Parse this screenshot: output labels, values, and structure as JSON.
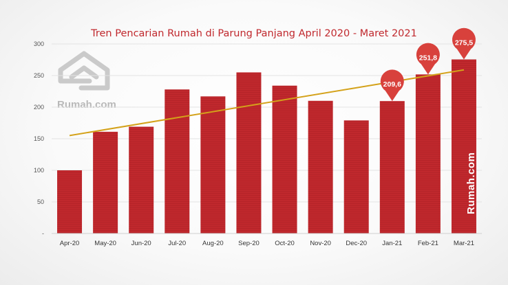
{
  "colors": {
    "bar": "#c0282d",
    "trend": "#d4a21a",
    "callout": "#d8413c",
    "grid": "#e3e3e3",
    "watermark": "#c4c4c4"
  },
  "watermark": {
    "logo_icon": "rumah-house-logo-icon",
    "text": "Rumah.com"
  },
  "brand_vertical": "Rumah.com",
  "chart_data": {
    "type": "bar",
    "title": "Tren Pencarian Rumah di Parung Panjang April 2020 - Maret 2021",
    "xlabel": "",
    "ylabel": "",
    "categories": [
      "Apr-20",
      "May-20",
      "Jun-20",
      "Jul-20",
      "Aug-20",
      "Sep-20",
      "Oct-20",
      "Nov-20",
      "Dec-20",
      "Jan-21",
      "Feb-21",
      "Mar-21"
    ],
    "values": [
      100,
      161,
      169,
      228,
      217,
      255,
      234,
      210,
      179,
      209.6,
      251.8,
      275.5
    ],
    "ylim": [
      0,
      300
    ],
    "yticks": [
      0,
      50,
      100,
      150,
      200,
      250,
      300
    ],
    "ytick_labels": [
      "-",
      "50",
      "100",
      "150",
      "200",
      "250",
      "300"
    ],
    "grid": true,
    "legend": "none",
    "trendline": {
      "type": "linear",
      "start": 155,
      "end": 259
    },
    "callouts": [
      {
        "category": "Jan-21",
        "label": "209,6"
      },
      {
        "category": "Feb-21",
        "label": "251,8"
      },
      {
        "category": "Mar-21",
        "label": "275,5"
      }
    ]
  }
}
